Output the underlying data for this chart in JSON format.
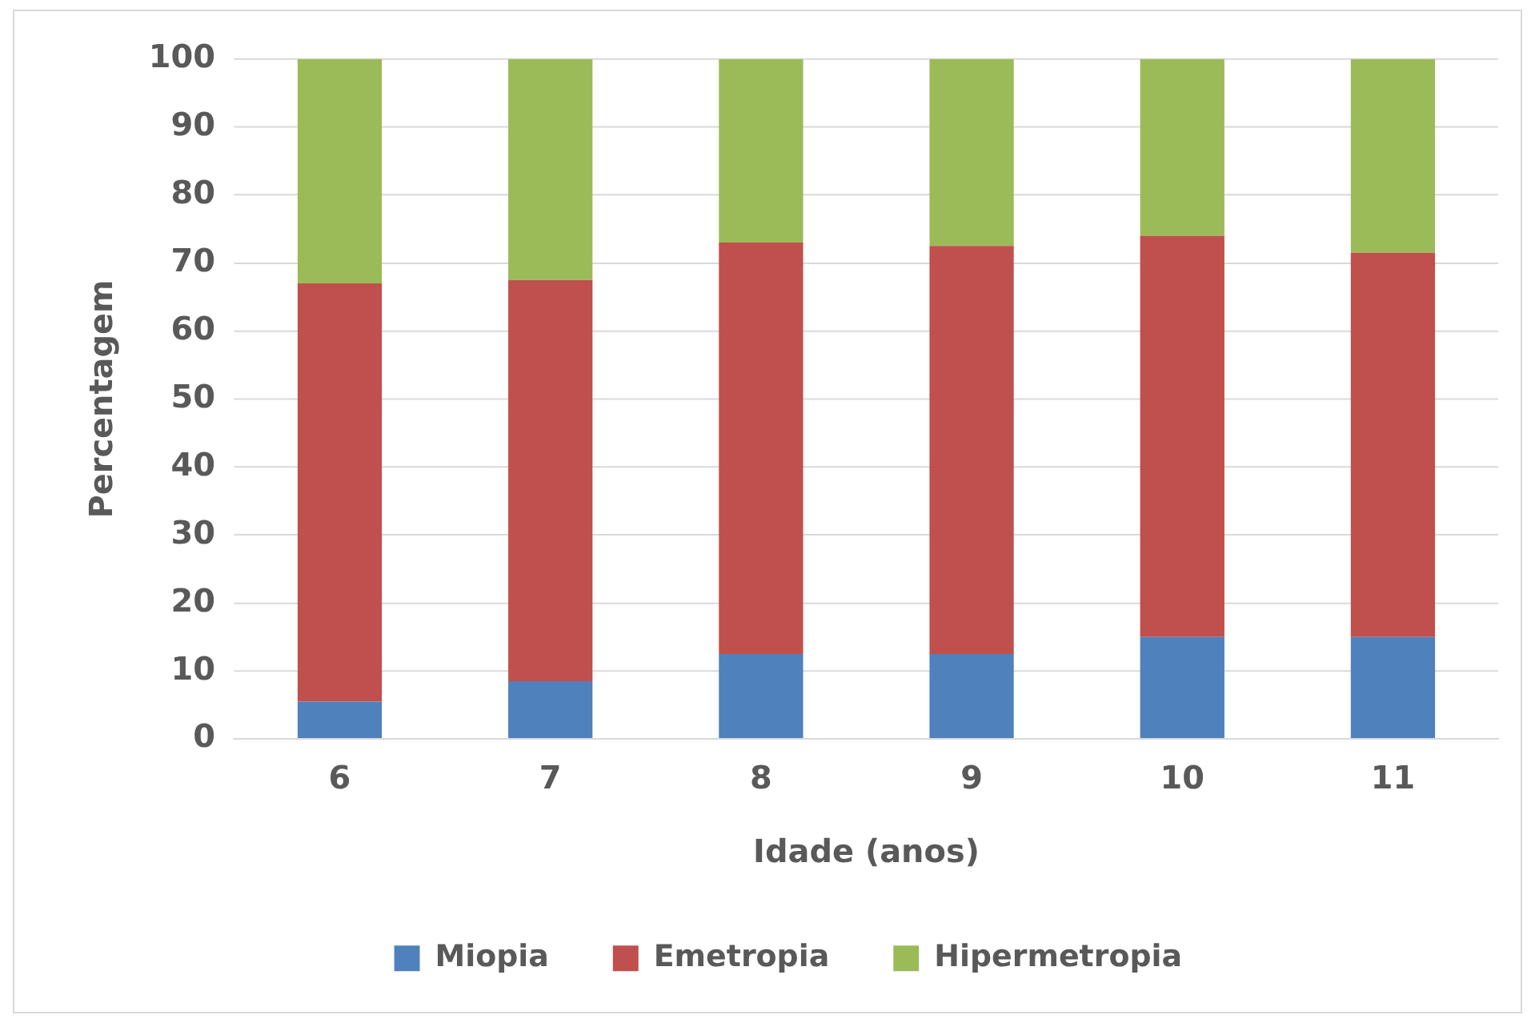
{
  "chart_data": {
    "type": "bar",
    "stacked": true,
    "xlabel": "Idade (anos)",
    "ylabel": "Percentagem",
    "categories": [
      "6",
      "7",
      "8",
      "9",
      "10",
      "11"
    ],
    "series": [
      {
        "name": "Miopia",
        "color": "#4f81bd",
        "values": [
          5.5,
          8.5,
          12.5,
          12.5,
          15,
          15
        ]
      },
      {
        "name": "Emetropia",
        "color": "#c0504d",
        "values": [
          61.5,
          59,
          60.5,
          60,
          59,
          56.5
        ]
      },
      {
        "name": "Hipermetropia",
        "color": "#9bbb59",
        "values": [
          33,
          32.5,
          27,
          27.5,
          26,
          28.5
        ]
      }
    ],
    "ylim": [
      0,
      100
    ],
    "yticks": [
      0,
      10,
      20,
      30,
      40,
      50,
      60,
      70,
      80,
      90,
      100
    ],
    "grid": "y",
    "legend": "bottom"
  }
}
